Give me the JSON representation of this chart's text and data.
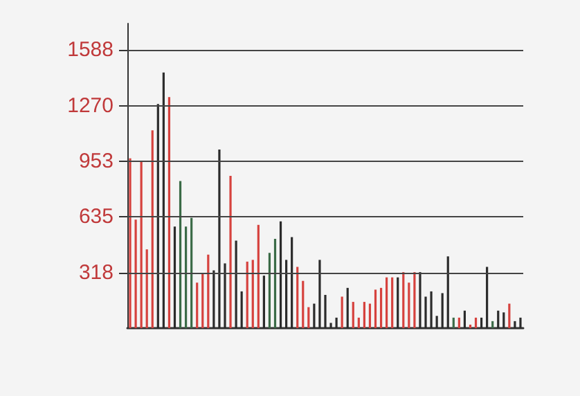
{
  "chart_data": {
    "type": "bar",
    "categories": [
      null,
      null,
      null,
      null,
      null,
      null,
      null,
      null,
      null,
      null,
      null,
      null,
      null,
      null,
      null,
      null,
      null,
      null,
      null,
      null,
      null,
      null,
      null,
      null,
      null,
      null,
      null,
      null,
      null,
      null,
      null,
      null,
      null,
      null,
      null,
      null,
      null,
      null,
      null,
      null,
      null,
      null,
      null,
      null,
      null,
      null,
      null,
      null,
      null,
      null,
      null,
      null,
      null,
      null,
      null,
      null,
      null,
      null,
      null,
      null,
      null,
      null,
      null,
      null,
      null,
      null,
      null,
      null,
      null,
      null,
      null
    ],
    "values": [
      970,
      620,
      950,
      450,
      1130,
      1280,
      1460,
      1320,
      580,
      840,
      580,
      630,
      260,
      310,
      420,
      330,
      1020,
      370,
      870,
      500,
      210,
      380,
      390,
      590,
      300,
      430,
      510,
      610,
      390,
      520,
      350,
      270,
      120,
      140,
      390,
      190,
      30,
      60,
      180,
      230,
      150,
      60,
      150,
      140,
      220,
      230,
      290,
      290,
      290,
      320,
      260,
      320,
      320,
      180,
      210,
      70,
      200,
      410,
      60,
      60,
      100,
      20,
      60,
      60,
      350,
      40,
      100,
      90,
      140,
      40,
      60
    ],
    "colors": [
      "#d6423e",
      "#d6423e",
      "#d6423e",
      "#d6423e",
      "#d6423e",
      "#2b2b2b",
      "#2b2b2b",
      "#d6423e",
      "#2b2b2b",
      "#3b6b47",
      "#3b6b47",
      "#3b6b47",
      "#d6423e",
      "#d6423e",
      "#d6423e",
      "#2b2b2b",
      "#2b2b2b",
      "#2b2b2b",
      "#d6423e",
      "#2b2b2b",
      "#2b2b2b",
      "#d6423e",
      "#d6423e",
      "#d6423e",
      "#2b2b2b",
      "#3b6b47",
      "#3b6b47",
      "#2b2b2b",
      "#2b2b2b",
      "#2b2b2b",
      "#d6423e",
      "#d6423e",
      "#d6423e",
      "#2b2b2b",
      "#2b2b2b",
      "#2b2b2b",
      "#2b2b2b",
      "#2b2b2b",
      "#d6423e",
      "#2b2b2b",
      "#d6423e",
      "#d6423e",
      "#d6423e",
      "#d6423e",
      "#d6423e",
      "#d6423e",
      "#d6423e",
      "#d6423e",
      "#2b2b2b",
      "#d6423e",
      "#d6423e",
      "#d6423e",
      "#2b2b2b",
      "#2b2b2b",
      "#2b2b2b",
      "#2b2b2b",
      "#2b2b2b",
      "#2b2b2b",
      "#3b6b47",
      "#d6423e",
      "#2b2b2b",
      "#d6423e",
      "#d6423e",
      "#2b2b2b",
      "#2b2b2b",
      "#3b6b47",
      "#2b2b2b",
      "#2b2b2b",
      "#d6423e",
      "#2b2b2b",
      "#2b2b2b"
    ],
    "ylim": [
      0,
      1740
    ],
    "yticks": [
      318,
      635,
      953,
      1270,
      1588
    ],
    "tick_labels": "y",
    "grid": "y"
  }
}
